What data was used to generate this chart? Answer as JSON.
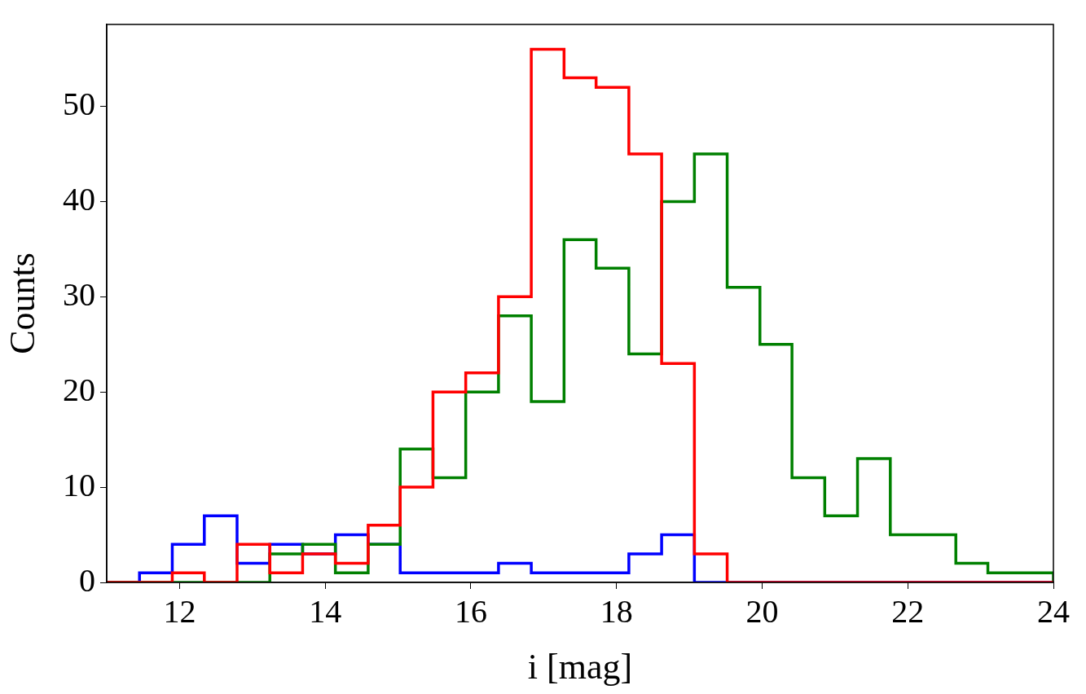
{
  "chart_data": {
    "type": "histogram",
    "xlabel": "i [mag]",
    "ylabel": "Counts",
    "bins": [
      11,
      11.45,
      11.9,
      12.34,
      12.79,
      13.24,
      13.69,
      14.14,
      14.59,
      15.03,
      15.48,
      15.93,
      16.38,
      16.83,
      17.28,
      17.72,
      18.17,
      18.62,
      19.07,
      19.52,
      19.97,
      20.41,
      20.86,
      21.31,
      21.76,
      22.21,
      22.66,
      23.1,
      23.55,
      24
    ],
    "series": [
      {
        "color": "#ff0000",
        "values": [
          0,
          0,
          1,
          0,
          4,
          1,
          3,
          2,
          6,
          10,
          20,
          22,
          30,
          56,
          53,
          52,
          45,
          23,
          3,
          0,
          0,
          0,
          0,
          0,
          0,
          0,
          0,
          0,
          0
        ]
      },
      {
        "color": "#008000",
        "values": [
          0,
          0,
          0,
          0,
          0,
          3,
          4,
          1,
          4,
          14,
          11,
          20,
          28,
          19,
          36,
          33,
          24,
          40,
          45,
          31,
          25,
          11,
          7,
          13,
          5,
          5,
          2,
          1,
          1
        ]
      },
      {
        "color": "#0000ff",
        "values": [
          0,
          1,
          4,
          7,
          2,
          4,
          3,
          5,
          4,
          1,
          1,
          1,
          2,
          1,
          1,
          1,
          3,
          5,
          0,
          0,
          0,
          0,
          0,
          0,
          0,
          0,
          0,
          0,
          0
        ]
      }
    ],
    "xlim": [
      11,
      24
    ],
    "xticks": [
      12,
      14,
      16,
      18,
      20,
      22,
      24
    ],
    "ylim": [
      0,
      58.6
    ],
    "yticks": [
      0,
      10,
      20,
      30,
      40,
      50
    ],
    "grid": false,
    "legend": false,
    "line_style": "solid"
  }
}
